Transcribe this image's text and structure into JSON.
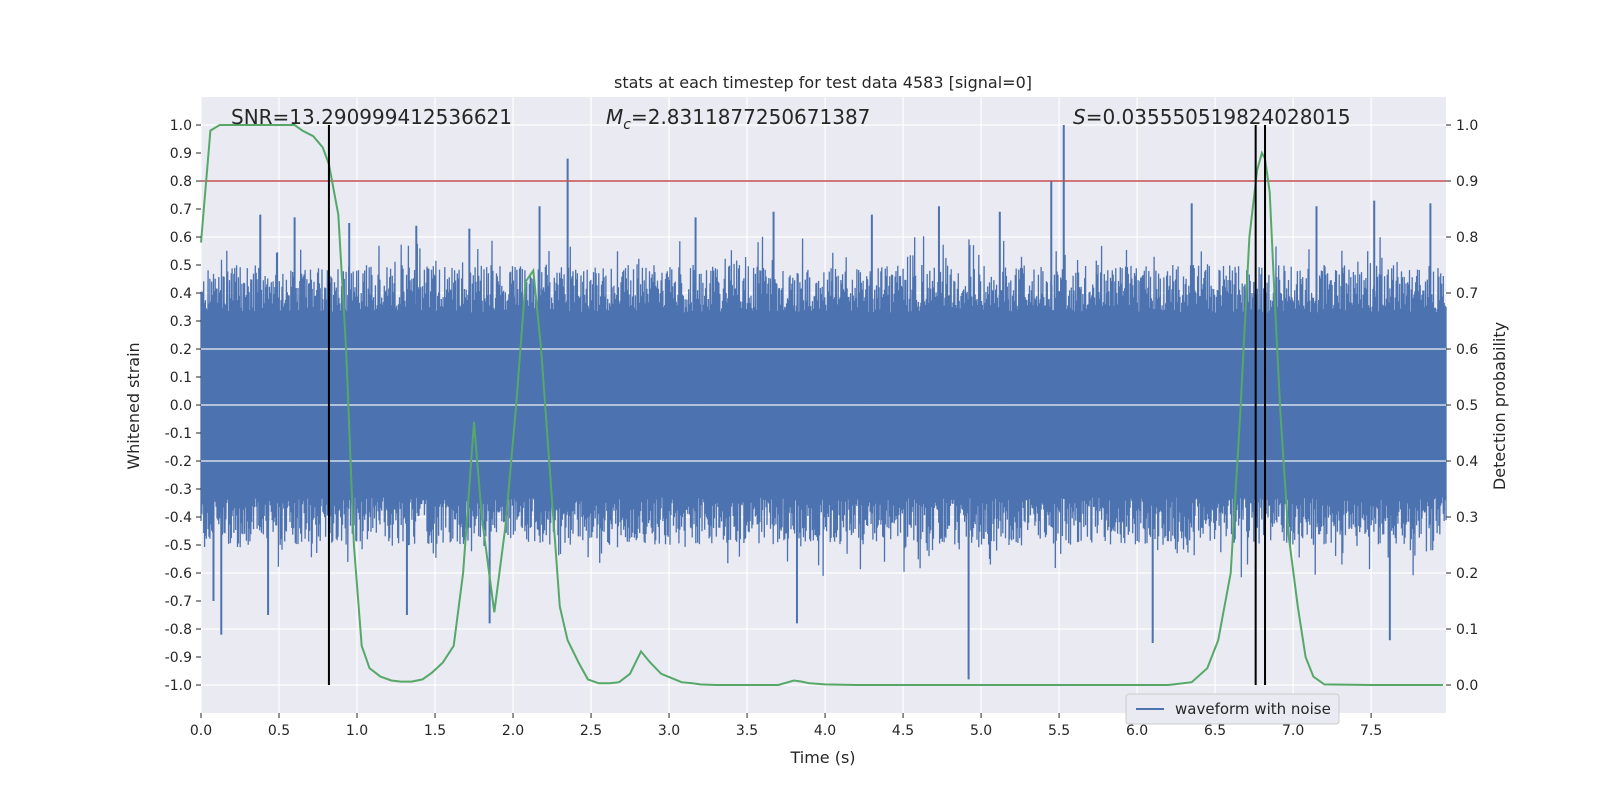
{
  "chart_data": {
    "type": "line",
    "title": "stats at each timestep for test data 4583 [signal=0]",
    "xlabel": "Time (s)",
    "ylabel": "Whitened strain",
    "ylabel_right": "Detection probability",
    "xlim": [
      0.0,
      7.98
    ],
    "ylim": [
      -1.1,
      1.1
    ],
    "ylim_right": [
      -0.05,
      1.05
    ],
    "xticks": [
      0.0,
      0.5,
      1.0,
      1.5,
      2.0,
      2.5,
      3.0,
      3.5,
      4.0,
      4.5,
      5.0,
      5.5,
      6.0,
      6.5,
      7.0,
      7.5
    ],
    "xtick_labels": [
      "0.0",
      "0.5",
      "1.0",
      "1.5",
      "2.0",
      "2.5",
      "3.0",
      "3.5",
      "4.0",
      "4.5",
      "5.0",
      "5.5",
      "6.0",
      "6.5",
      "7.0",
      "7.5"
    ],
    "yticks": [
      1.0,
      0.9,
      0.8,
      0.7,
      0.6,
      0.5,
      0.4,
      0.3,
      0.2,
      0.1,
      0.0,
      -0.1,
      -0.2,
      -0.3,
      -0.4,
      -0.5,
      -0.6,
      -0.7,
      -0.8,
      -0.9,
      -1.0
    ],
    "ytick_labels": [
      "1.0",
      "0.9",
      "0.8",
      "0.7",
      "0.6",
      "0.5",
      "0.4",
      "0.3",
      "0.2",
      "0.1",
      "0.0",
      "-0.1",
      "-0.2",
      "-0.3",
      "-0.4",
      "-0.5",
      "-0.6",
      "-0.7",
      "-0.8",
      "-0.9",
      "-1.0"
    ],
    "yticks_right": [
      1.0,
      0.9,
      0.8,
      0.7,
      0.6,
      0.5,
      0.4,
      0.3,
      0.2,
      0.1,
      0.0
    ],
    "ytick_labels_right": [
      "1.0",
      "0.9",
      "0.8",
      "0.7",
      "0.6",
      "0.5",
      "0.4",
      "0.3",
      "0.2",
      "0.1",
      "0.0"
    ],
    "grid": true,
    "series": [
      {
        "name": "waveform with noise",
        "axis": "left",
        "color": "#4c72b0",
        "description_values": "dense noise, mostly within [-0.4, 0.4]",
        "spikes": [
          {
            "x": 0.08,
            "y": -0.7
          },
          {
            "x": 0.13,
            "y": -0.82
          },
          {
            "x": 0.38,
            "y": 0.68
          },
          {
            "x": 0.43,
            "y": -0.75
          },
          {
            "x": 0.6,
            "y": 0.67
          },
          {
            "x": 0.95,
            "y": 0.65
          },
          {
            "x": 1.32,
            "y": -0.75
          },
          {
            "x": 1.38,
            "y": 0.64
          },
          {
            "x": 1.72,
            "y": 0.63
          },
          {
            "x": 1.85,
            "y": -0.78
          },
          {
            "x": 2.17,
            "y": 0.71
          },
          {
            "x": 2.35,
            "y": 0.88
          },
          {
            "x": 3.17,
            "y": 0.67
          },
          {
            "x": 3.67,
            "y": 0.69
          },
          {
            "x": 3.82,
            "y": -0.78
          },
          {
            "x": 4.3,
            "y": 0.68
          },
          {
            "x": 4.73,
            "y": 0.71
          },
          {
            "x": 4.92,
            "y": -0.98
          },
          {
            "x": 5.12,
            "y": 0.69
          },
          {
            "x": 5.53,
            "y": 1.0
          },
          {
            "x": 5.45,
            "y": 0.8
          },
          {
            "x": 6.1,
            "y": -0.85
          },
          {
            "x": 6.35,
            "y": 0.72
          },
          {
            "x": 7.15,
            "y": 0.71
          },
          {
            "x": 7.52,
            "y": 0.73
          },
          {
            "x": 7.62,
            "y": -0.84
          },
          {
            "x": 7.88,
            "y": 0.72
          }
        ]
      },
      {
        "name": "detection probability",
        "axis": "right",
        "color": "#55a868",
        "x": [
          0.0,
          0.06,
          0.12,
          0.2,
          0.3,
          0.4,
          0.5,
          0.6,
          0.65,
          0.72,
          0.78,
          0.82,
          0.88,
          0.93,
          0.98,
          1.03,
          1.08,
          1.15,
          1.22,
          1.28,
          1.35,
          1.42,
          1.48,
          1.55,
          1.62,
          1.68,
          1.75,
          1.8,
          1.88,
          1.95,
          2.02,
          2.08,
          2.13,
          2.18,
          2.25,
          2.3,
          2.35,
          2.42,
          2.48,
          2.55,
          2.62,
          2.68,
          2.75,
          2.82,
          2.88,
          2.95,
          3.02,
          3.08,
          3.15,
          3.2,
          3.3,
          3.5,
          3.7,
          3.8,
          3.85,
          3.9,
          4.0,
          4.2,
          4.4,
          4.6,
          4.8,
          5.0,
          5.5,
          6.0,
          6.2,
          6.35,
          6.45,
          6.52,
          6.6,
          6.66,
          6.72,
          6.77,
          6.8,
          6.82,
          6.85,
          6.88,
          6.92,
          6.97,
          7.03,
          7.08,
          7.13,
          7.2,
          7.5,
          7.96
        ],
        "y": [
          0.79,
          0.99,
          1.0,
          1.0,
          1.0,
          1.0,
          1.0,
          1.0,
          0.99,
          0.98,
          0.96,
          0.93,
          0.84,
          0.6,
          0.25,
          0.07,
          0.03,
          0.015,
          0.008,
          0.006,
          0.006,
          0.01,
          0.022,
          0.04,
          0.07,
          0.2,
          0.47,
          0.3,
          0.13,
          0.28,
          0.5,
          0.72,
          0.74,
          0.6,
          0.33,
          0.14,
          0.08,
          0.04,
          0.01,
          0.003,
          0.003,
          0.005,
          0.02,
          0.06,
          0.04,
          0.02,
          0.012,
          0.005,
          0.003,
          0.001,
          0.0,
          0.0,
          0.0,
          0.008,
          0.006,
          0.003,
          0.001,
          0.0,
          0.0,
          0.0,
          0.0,
          0.0,
          0.0,
          0.0,
          0.0,
          0.005,
          0.03,
          0.08,
          0.2,
          0.48,
          0.8,
          0.92,
          0.95,
          0.94,
          0.88,
          0.7,
          0.48,
          0.27,
          0.14,
          0.05,
          0.015,
          0.001,
          0.0,
          0.0
        ]
      }
    ],
    "threshold_line": {
      "value": 0.9,
      "axis": "right",
      "color": "#c44e52"
    },
    "vertical_markers": [
      0.82,
      6.76,
      6.82
    ],
    "annotations": {
      "snr": "SNR=13.290999412536621",
      "mc_symbol": "M",
      "mc_sub": "c",
      "mc_value": "=2.8311877250671387",
      "s_symbol": "S",
      "s_value": "=0.035550519824028015"
    },
    "legend": {
      "label": "waveform with noise",
      "placement": "bottom-right"
    }
  }
}
